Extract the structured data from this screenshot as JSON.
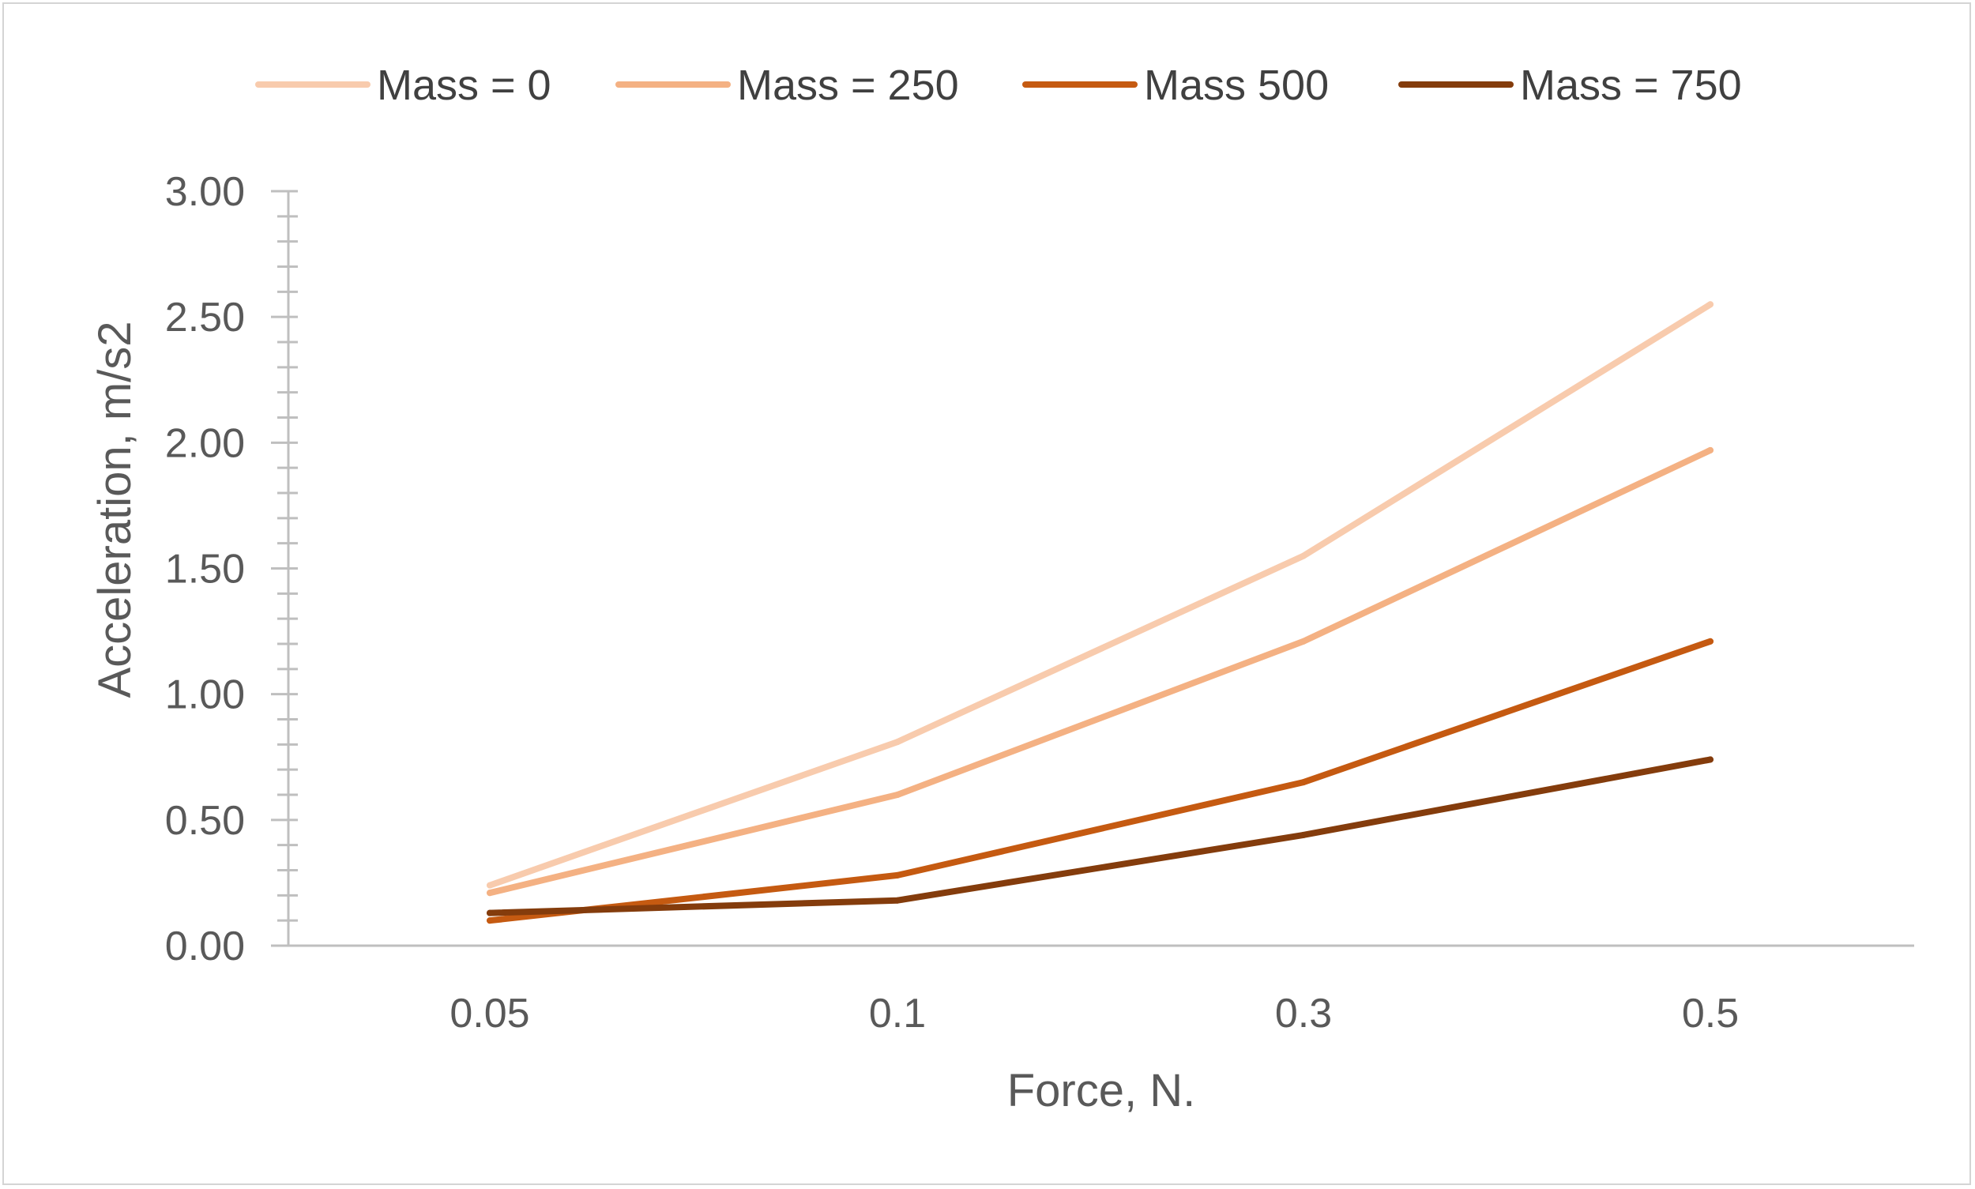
{
  "chart_data": {
    "type": "line",
    "title": "",
    "xlabel": "Force, N.",
    "ylabel": "Acceleration, m/s2",
    "categories": [
      "0.05",
      "0.1",
      "0.3",
      "0.5"
    ],
    "ylim": [
      0,
      3
    ],
    "y_major_step": 0.5,
    "y_minor_step": 0.1,
    "y_tick_labels": [
      "0.00",
      "0.50",
      "1.00",
      "1.50",
      "2.00",
      "2.50",
      "3.00"
    ],
    "legend_position": "top",
    "grid": false,
    "series": [
      {
        "name": "Mass = 0",
        "color": "#f8cbad",
        "values": [
          0.24,
          0.81,
          1.55,
          2.55
        ]
      },
      {
        "name": "Mass = 250",
        "color": "#f4b183",
        "values": [
          0.21,
          0.6,
          1.21,
          1.97
        ]
      },
      {
        "name": "Mass 500",
        "color": "#c55a11",
        "values": [
          0.1,
          0.28,
          0.65,
          1.21
        ]
      },
      {
        "name": "Mass = 750",
        "color": "#843c0c",
        "values": [
          0.13,
          0.18,
          0.44,
          0.74
        ]
      }
    ]
  }
}
